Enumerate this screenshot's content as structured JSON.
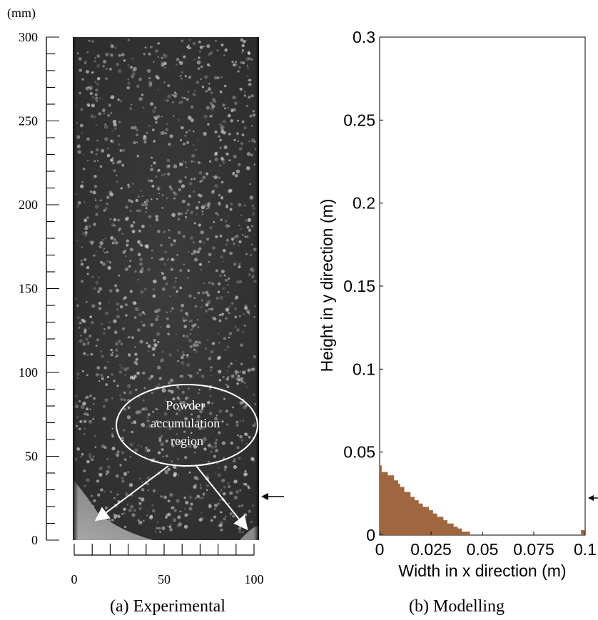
{
  "panel_a": {
    "unit_label": "(mm)",
    "y_ticks": [
      {
        "value": 0,
        "label": "0"
      },
      {
        "value": 50,
        "label": "50"
      },
      {
        "value": 100,
        "label": "100"
      },
      {
        "value": 150,
        "label": "150"
      },
      {
        "value": 200,
        "label": "200"
      },
      {
        "value": 250,
        "label": "250"
      },
      {
        "value": 300,
        "label": "300"
      }
    ],
    "x_ticks": [
      {
        "value": 0,
        "label": "0"
      },
      {
        "value": 50,
        "label": "50"
      },
      {
        "value": 100,
        "label": "100"
      }
    ],
    "annotation": [
      "Powder",
      "accumulation",
      "region"
    ],
    "caption": "(a) Experimental"
  },
  "panel_b": {
    "caption": "(b) Modelling",
    "powder_color": "#a0663f"
  },
  "chart_data": {
    "type": "area",
    "title": "",
    "xlabel": "Width in x direction (m)",
    "ylabel": "Height in y direction (m)",
    "xlim": [
      0,
      0.1
    ],
    "ylim": [
      0,
      0.3
    ],
    "x_ticks": [
      {
        "value": 0,
        "label": "0"
      },
      {
        "value": 0.025,
        "label": "0.025"
      },
      {
        "value": 0.05,
        "label": "0.05"
      },
      {
        "value": 0.075,
        "label": "0.075"
      },
      {
        "value": 0.1,
        "label": "0.1"
      }
    ],
    "y_ticks": [
      {
        "value": 0,
        "label": "0"
      },
      {
        "value": 0.05,
        "label": "0.05"
      },
      {
        "value": 0.1,
        "label": "0.1"
      },
      {
        "value": 0.15,
        "label": "0.15"
      },
      {
        "value": 0.2,
        "label": "0.2"
      },
      {
        "value": 0.25,
        "label": "0.25"
      },
      {
        "value": 0.3,
        "label": "0.3"
      }
    ],
    "powder_profile": [
      [
        0,
        0.042
      ],
      [
        0.001,
        0.042
      ],
      [
        0.001,
        0.038
      ],
      [
        0.004,
        0.038
      ],
      [
        0.004,
        0.036
      ],
      [
        0.007,
        0.036
      ],
      [
        0.007,
        0.033
      ],
      [
        0.009,
        0.033
      ],
      [
        0.009,
        0.031
      ],
      [
        0.01,
        0.031
      ],
      [
        0.01,
        0.029
      ],
      [
        0.012,
        0.029
      ],
      [
        0.012,
        0.026
      ],
      [
        0.015,
        0.026
      ],
      [
        0.015,
        0.023
      ],
      [
        0.017,
        0.023
      ],
      [
        0.017,
        0.021
      ],
      [
        0.019,
        0.021
      ],
      [
        0.019,
        0.019
      ],
      [
        0.021,
        0.019
      ],
      [
        0.021,
        0.017
      ],
      [
        0.024,
        0.017
      ],
      [
        0.024,
        0.015
      ],
      [
        0.026,
        0.015
      ],
      [
        0.026,
        0.013
      ],
      [
        0.028,
        0.013
      ],
      [
        0.028,
        0.011
      ],
      [
        0.031,
        0.011
      ],
      [
        0.031,
        0.009
      ],
      [
        0.033,
        0.009
      ],
      [
        0.033,
        0.007
      ],
      [
        0.036,
        0.007
      ],
      [
        0.036,
        0.005
      ],
      [
        0.038,
        0.005
      ],
      [
        0.038,
        0.004
      ],
      [
        0.04,
        0.004
      ],
      [
        0.04,
        0.002
      ],
      [
        0.044,
        0.002
      ],
      [
        0.044,
        0
      ],
      [
        0.098,
        0
      ],
      [
        0.098,
        0.003
      ],
      [
        0.1,
        0.003
      ],
      [
        0.1,
        0
      ]
    ]
  }
}
